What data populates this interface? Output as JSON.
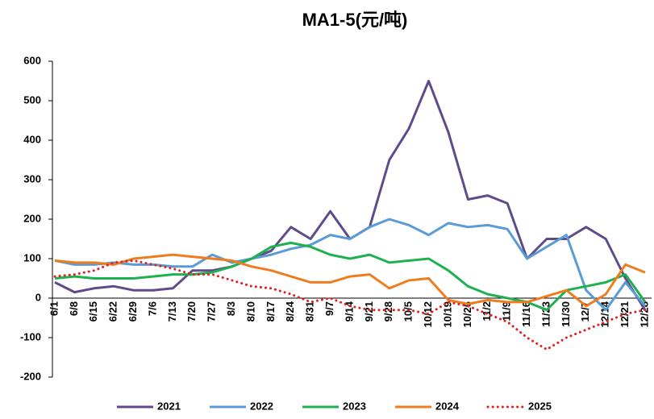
{
  "chart_data": {
    "type": "line",
    "title": "MA1-5(元/吨)",
    "categories": [
      "6/1",
      "6/8",
      "6/15",
      "6/22",
      "6/29",
      "7/6",
      "7/13",
      "7/20",
      "7/27",
      "8/3",
      "8/10",
      "8/17",
      "8/24",
      "8/31",
      "9/7",
      "9/14",
      "9/21",
      "9/28",
      "10/5",
      "10/12",
      "10/19",
      "10/26",
      "11/2",
      "11/9",
      "11/16",
      "11/23",
      "11/30",
      "12/7",
      "12/14",
      "12/21",
      "12/28"
    ],
    "series": [
      {
        "name": "2021",
        "color": "#5e4b8b",
        "style": "solid",
        "values": [
          40,
          15,
          25,
          30,
          20,
          20,
          25,
          70,
          70,
          80,
          100,
          120,
          180,
          150,
          220,
          150,
          180,
          350,
          430,
          550,
          420,
          250,
          260,
          240,
          100,
          150,
          150,
          180,
          150,
          50,
          -30
        ]
      },
      {
        "name": "2022",
        "color": "#5b9bd5",
        "style": "solid",
        "values": [
          95,
          85,
          85,
          90,
          85,
          85,
          80,
          80,
          110,
          90,
          100,
          110,
          125,
          135,
          160,
          150,
          180,
          200,
          185,
          160,
          190,
          180,
          185,
          175,
          100,
          130,
          160,
          20,
          -30,
          40,
          -20
        ]
      },
      {
        "name": "2023",
        "color": "#1fb04f",
        "style": "solid",
        "values": [
          50,
          55,
          50,
          50,
          50,
          55,
          60,
          60,
          65,
          80,
          100,
          130,
          140,
          130,
          110,
          100,
          110,
          90,
          95,
          100,
          70,
          30,
          10,
          0,
          -10,
          -30,
          20,
          30,
          40,
          60,
          -10
        ]
      },
      {
        "name": "2024",
        "color": "#ed7d1f",
        "style": "solid",
        "values": [
          95,
          90,
          90,
          85,
          100,
          105,
          110,
          105,
          100,
          95,
          80,
          70,
          55,
          40,
          40,
          55,
          60,
          25,
          45,
          50,
          -5,
          -15,
          -5,
          -10,
          -10,
          5,
          20,
          -20,
          10,
          85,
          65
        ]
      },
      {
        "name": "2025",
        "color": "#e02020",
        "style": "dotted",
        "values": [
          55,
          60,
          70,
          90,
          95,
          85,
          75,
          60,
          60,
          45,
          30,
          25,
          10,
          -10,
          0,
          -20,
          -30,
          -30,
          -30,
          -40,
          -10,
          -20,
          -40,
          -60,
          -100,
          -130,
          -100,
          -80,
          -60,
          -40,
          -30
        ]
      }
    ],
    "ylim": [
      -200,
      600
    ],
    "yticks": [
      -200,
      -100,
      0,
      100,
      200,
      300,
      400,
      500,
      600
    ]
  }
}
